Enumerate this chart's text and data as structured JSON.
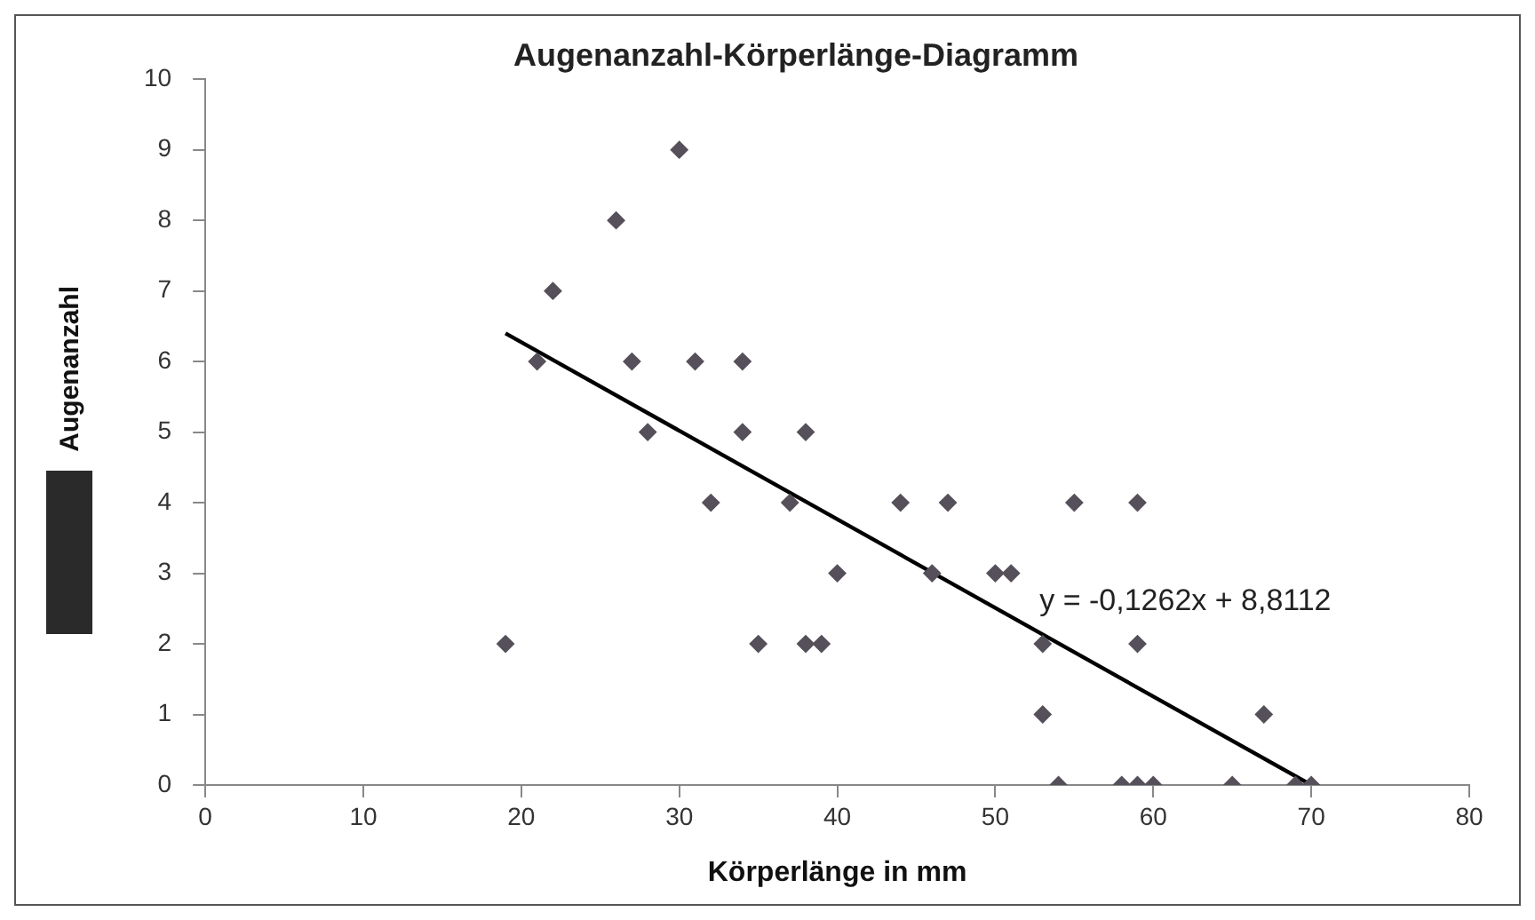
{
  "chart_data": {
    "type": "scatter",
    "title": "Augenanzahl-Körperlänge-Diagramm",
    "xlabel": "Körperlänge in mm",
    "ylabel": "Augenanzahl",
    "xlim": [
      0,
      80
    ],
    "xticks": [
      0,
      10,
      20,
      30,
      40,
      50,
      60,
      70,
      80
    ],
    "ylim": [
      0,
      10
    ],
    "yticks": [
      0,
      1,
      2,
      3,
      4,
      5,
      6,
      7,
      8,
      9,
      10
    ],
    "grid": false,
    "legend": false,
    "marker": "diamond",
    "series": [
      {
        "type": "scatter",
        "color": "#55505a",
        "x": [
          19,
          35,
          38,
          39,
          21,
          27,
          31,
          34,
          22,
          26,
          30,
          28,
          34,
          38,
          32,
          37,
          40,
          54,
          58,
          59,
          60,
          65,
          69,
          70,
          44,
          47,
          55,
          59,
          46,
          50,
          51,
          53,
          59,
          53,
          67
        ],
        "values": [
          2,
          2,
          2,
          2,
          6,
          6,
          6,
          6,
          7,
          8,
          9,
          5,
          5,
          5,
          4,
          4,
          3,
          0,
          0,
          0,
          0,
          0,
          0,
          0,
          4,
          4,
          4,
          4,
          3,
          3,
          3,
          2,
          2,
          1,
          1
        ]
      },
      {
        "type": "line",
        "color": "#000000",
        "x": [
          19,
          70
        ],
        "values": [
          6.4,
          0
        ],
        "marker": "none",
        "line_style": "solid"
      }
    ],
    "annotations": [
      "y = -0,1262x + 8,8112"
    ]
  }
}
